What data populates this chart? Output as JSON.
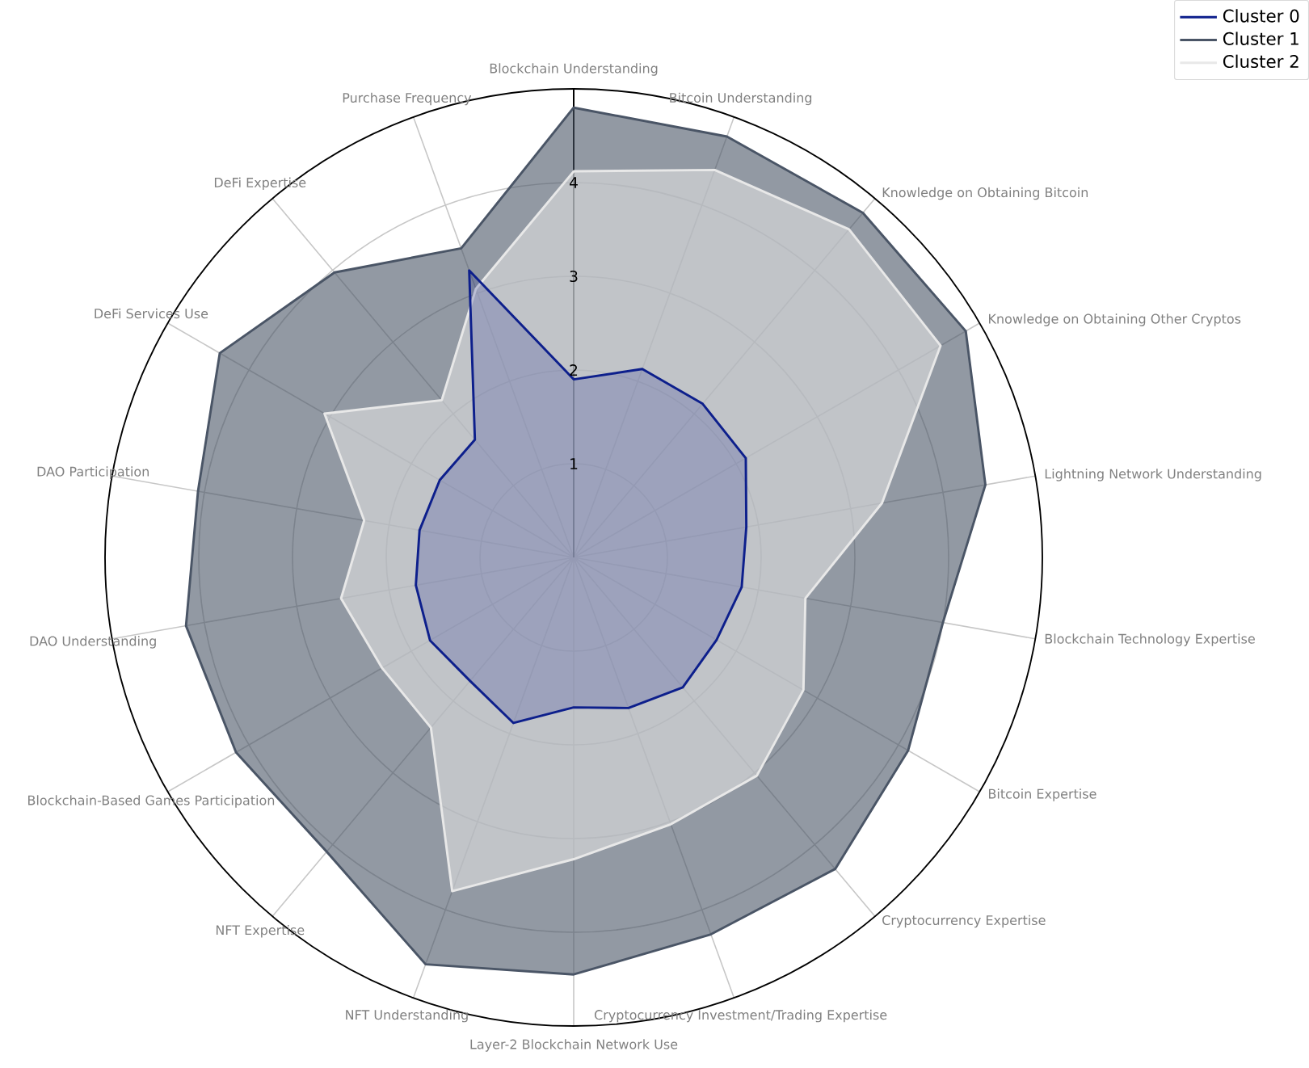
{
  "chart_data": {
    "type": "radar",
    "categories": [
      "Blockchain Understanding",
      "Bitcoin Understanding",
      "Knowledge on Obtaining Bitcoin",
      "Knowledge on Obtaining Other Cryptos",
      "Lightning Network Understanding",
      "Blockchain Technology Expertise",
      "Bitcoin Expertise",
      "Cryptocurrency Expertise",
      "Cryptocurrency Investment/Trading Expertise",
      "Layer-2 Blockchain Network Use",
      "NFT Understanding",
      "NFT Expertise",
      "Blockchain-Based Games Participation",
      "DAO Understanding",
      "DAO Participation",
      "DeFi Services Use",
      "DeFi Expertise",
      "Purchase Frequency"
    ],
    "series": [
      {
        "name": "Cluster 0",
        "color": "#0d1f8c",
        "values": [
          1.9,
          2.14,
          2.14,
          2.12,
          1.87,
          1.82,
          1.76,
          1.81,
          1.71,
          1.6,
          1.88,
          1.72,
          1.77,
          1.71,
          1.67,
          1.65,
          1.64,
          3.26
        ]
      },
      {
        "name": "Cluster 1",
        "color": "#4a5566",
        "values": [
          4.8,
          4.78,
          4.8,
          4.83,
          4.46,
          4.0,
          4.12,
          4.34,
          4.28,
          4.45,
          4.62,
          4.1,
          4.16,
          4.2,
          4.07,
          4.36,
          3.97,
          3.51
        ]
      },
      {
        "name": "Cluster 2",
        "color": "#e8e8e8",
        "values": [
          4.12,
          4.4,
          4.57,
          4.52,
          3.34,
          2.51,
          2.83,
          3.04,
          3.03,
          3.22,
          3.79,
          2.37,
          2.36,
          2.52,
          2.27,
          3.07,
          2.19,
          3.05
        ]
      }
    ],
    "ylim": [
      0,
      5
    ],
    "yticks": [
      1,
      2,
      3,
      4
    ],
    "grid": true,
    "legend": "top right"
  }
}
